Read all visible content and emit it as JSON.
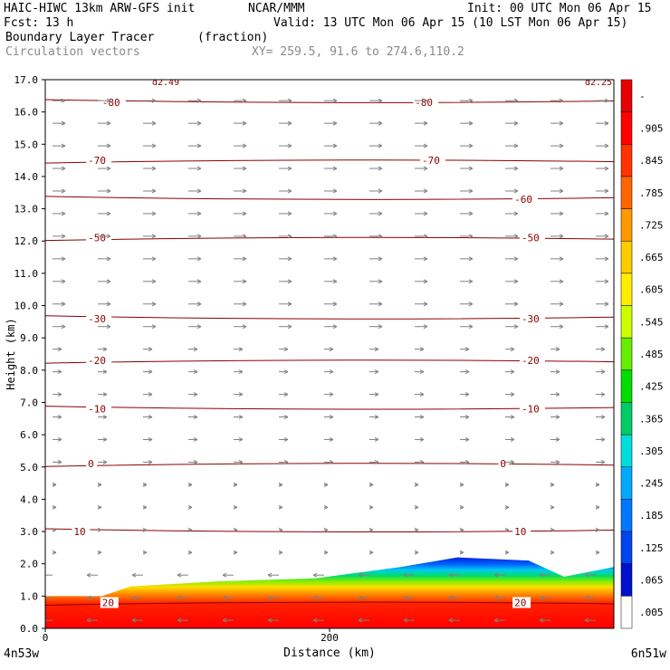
{
  "header": {
    "model": "HAIC-HIWC 13km ARW-GFS init",
    "org": "NCAR/MMM",
    "init": "Init: 00 UTC Mon 06 Apr 15",
    "fcst_label": "Fcst:",
    "fcst_value": "13 h",
    "valid": "Valid: 13 UTC Mon 06 Apr 15 (10 LST Mon 06 Apr 15)",
    "field1": "Boundary Layer Tracer",
    "field1_units": "(fraction)",
    "field2": "Circulation vectors",
    "xy": "XY= 259.5, 91.6 to 274.6,110.2"
  },
  "colors": {
    "contour": "#8b0000",
    "vector": "#808080",
    "frame": "#000000"
  },
  "chart_data": {
    "type": "heatmap",
    "xlabel": "Distance (km)",
    "ylabel": "Height (km)",
    "xlim": [
      0,
      400
    ],
    "ylim": [
      0,
      17
    ],
    "x_ticks": [
      "0",
      "200"
    ],
    "y_ticks": [
      "0.0",
      "1.0",
      "2.0",
      "3.0",
      "4.0",
      "5.0",
      "6.0",
      "7.0",
      "8.0",
      "9.0",
      "10.0",
      "11.0",
      "12.0",
      "13.0",
      "14.0",
      "15.0",
      "16.0",
      "17.0"
    ],
    "left_label": "4n53w",
    "right_label": "6n51w",
    "colorbar": {
      "labels": [
        "-",
        ".905",
        ".845",
        ".785",
        ".725",
        ".665",
        ".605",
        ".545",
        ".485",
        ".425",
        ".365",
        ".305",
        ".245",
        ".185",
        ".125",
        ".065",
        ".005"
      ],
      "colors": [
        "#e60000",
        "#ff0000",
        "#ff3300",
        "#ff6600",
        "#ff9900",
        "#ffcc00",
        "#ffee00",
        "#ccff00",
        "#66ee00",
        "#00dd00",
        "#00cc66",
        "#00dddd",
        "#00aaff",
        "#0077ff",
        "#0044ee",
        "#0011cc",
        "#ffffff"
      ]
    },
    "tracer_top_km": [
      {
        "x": 0,
        "top": 1.0
      },
      {
        "x": 40,
        "top": 1.0
      },
      {
        "x": 60,
        "top": 1.3
      },
      {
        "x": 120,
        "top": 1.45
      },
      {
        "x": 190,
        "top": 1.55
      },
      {
        "x": 250,
        "top": 1.9
      },
      {
        "x": 290,
        "top": 2.2
      },
      {
        "x": 340,
        "top": 2.1
      },
      {
        "x": 365,
        "top": 1.6
      },
      {
        "x": 400,
        "top": 1.9
      }
    ],
    "temperature_contours": [
      {
        "label": "-80",
        "z": 16.3,
        "label_x": [
          40,
          260
        ]
      },
      {
        "label": "-70",
        "z": 14.5,
        "label_x": [
          30,
          265
        ]
      },
      {
        "label": "-60",
        "z": 13.3,
        "label_x": [
          330
        ]
      },
      {
        "label": "-50",
        "z": 12.1,
        "label_x": [
          30,
          335
        ]
      },
      {
        "label": "-30",
        "z": 9.6,
        "label_x": [
          30,
          335
        ]
      },
      {
        "label": "-20",
        "z": 8.3,
        "label_x": [
          30,
          335
        ]
      },
      {
        "label": "-10",
        "z": 6.8,
        "label_x": [
          30,
          335
        ]
      },
      {
        "label": "0",
        "z": 5.1,
        "label_x": [
          30,
          320
        ]
      },
      {
        "label": "10",
        "z": 3.0,
        "label_x": [
          20,
          330
        ]
      },
      {
        "label": "20",
        "z": 0.8,
        "label_x": [
          40,
          330
        ]
      }
    ],
    "top_labels": [
      "d2.49",
      "d2.25"
    ]
  }
}
